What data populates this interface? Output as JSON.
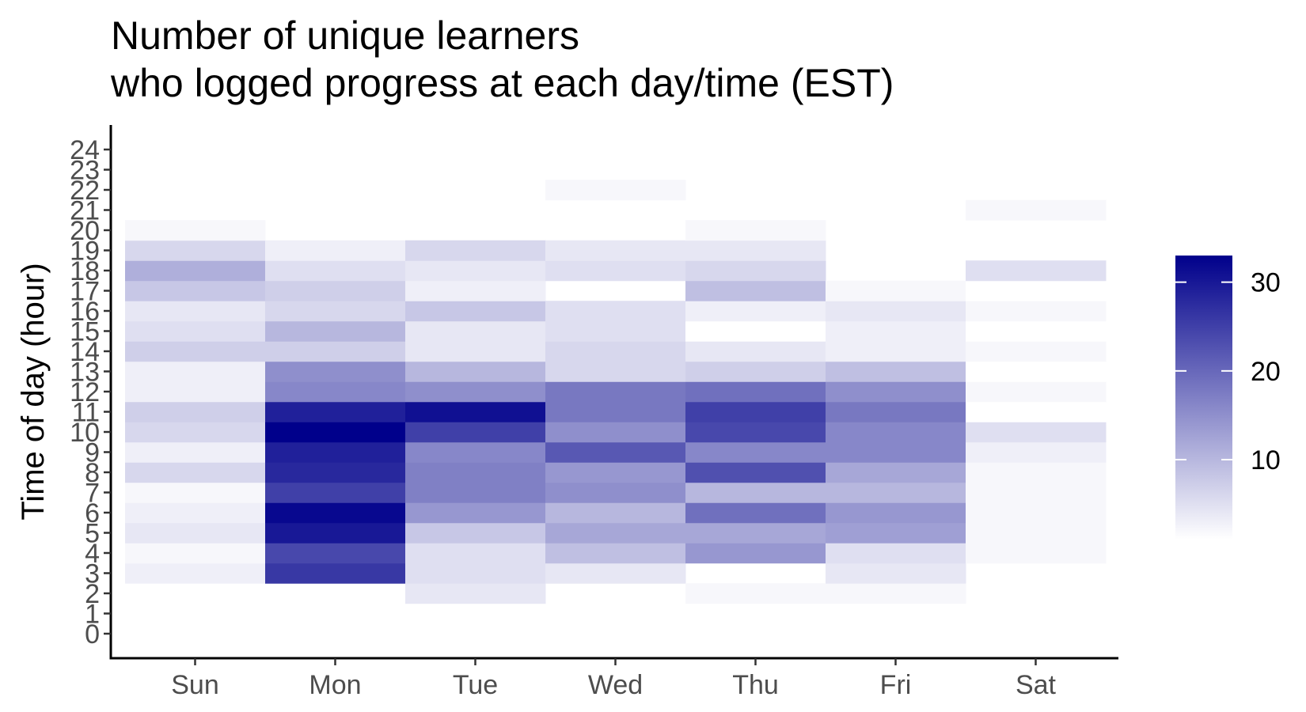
{
  "chart_data": {
    "type": "heatmap",
    "title_lines": [
      "Number of unique learners",
      "who logged progress at each day/time (EST)"
    ],
    "xlabel": "",
    "ylabel": "Time of day (hour)",
    "x_categories": [
      "Sun",
      "Mon",
      "Tue",
      "Wed",
      "Thu",
      "Fri",
      "Sat"
    ],
    "y_ticks": [
      "0",
      "1",
      "2",
      "3",
      "4",
      "5",
      "6",
      "7",
      "8",
      "9",
      "10",
      "11",
      "12",
      "13",
      "14",
      "15",
      "16",
      "17",
      "18",
      "19",
      "20",
      "21",
      "22",
      "23",
      "24"
    ],
    "ylim": [
      0,
      24
    ],
    "grid": false,
    "color_scale": {
      "low_color": "#ffffff",
      "high_color": "#00008b",
      "min": 1,
      "max": 33,
      "legend_ticks": [
        "10",
        "20",
        "30"
      ],
      "legend_position": "right"
    },
    "values": {
      "Sun": {
        "3": 3,
        "4": 2,
        "5": 4,
        "6": 3,
        "7": 2,
        "8": 6,
        "9": 3,
        "10": 6,
        "11": 7,
        "12": 3,
        "13": 3,
        "14": 7,
        "15": 5,
        "16": 4,
        "17": 8,
        "18": 11,
        "19": 6,
        "20": 2
      },
      "Mon": {
        "3": 26,
        "4": 24,
        "5": 30,
        "6": 32,
        "7": 25,
        "8": 28,
        "9": 29,
        "10": 33,
        "11": 29,
        "12": 16,
        "13": 15,
        "14": 7,
        "15": 10,
        "16": 6,
        "17": 7,
        "18": 5,
        "19": 3
      },
      "Tue": {
        "2": 4,
        "3": 5,
        "4": 5,
        "5": 8,
        "6": 14,
        "7": 17,
        "8": 17,
        "9": 16,
        "10": 25,
        "11": 31,
        "12": 15,
        "13": 10,
        "14": 4,
        "15": 4,
        "16": 8,
        "17": 3,
        "18": 4,
        "19": 6
      },
      "Wed": {
        "3": 4,
        "4": 9,
        "5": 12,
        "6": 10,
        "7": 15,
        "8": 14,
        "9": 22,
        "10": 15,
        "11": 18,
        "12": 18,
        "13": 6,
        "14": 6,
        "15": 5,
        "16": 5,
        "18": 5,
        "19": 4,
        "22": 2
      },
      "Thu": {
        "2": 2,
        "4": 14,
        "5": 12,
        "6": 19,
        "7": 10,
        "8": 23,
        "9": 16,
        "10": 24,
        "11": 25,
        "12": 19,
        "13": 7,
        "14": 4,
        "15": 1,
        "16": 3,
        "17": 9,
        "18": 6,
        "19": 4,
        "20": 2
      },
      "Fri": {
        "2": 2,
        "3": 4,
        "4": 5,
        "5": 13,
        "6": 14,
        "7": 10,
        "8": 12,
        "9": 16,
        "10": 16,
        "11": 18,
        "12": 15,
        "13": 9,
        "14": 3,
        "15": 3,
        "16": 4,
        "17": 2
      },
      "Sat": {
        "4": 2,
        "5": 2,
        "6": 2,
        "7": 2,
        "8": 2,
        "9": 3,
        "10": 5,
        "11": 1,
        "12": 2,
        "13": 1,
        "14": 2,
        "15": 1,
        "16": 2,
        "17": 1,
        "18": 5,
        "21": 2
      }
    }
  }
}
